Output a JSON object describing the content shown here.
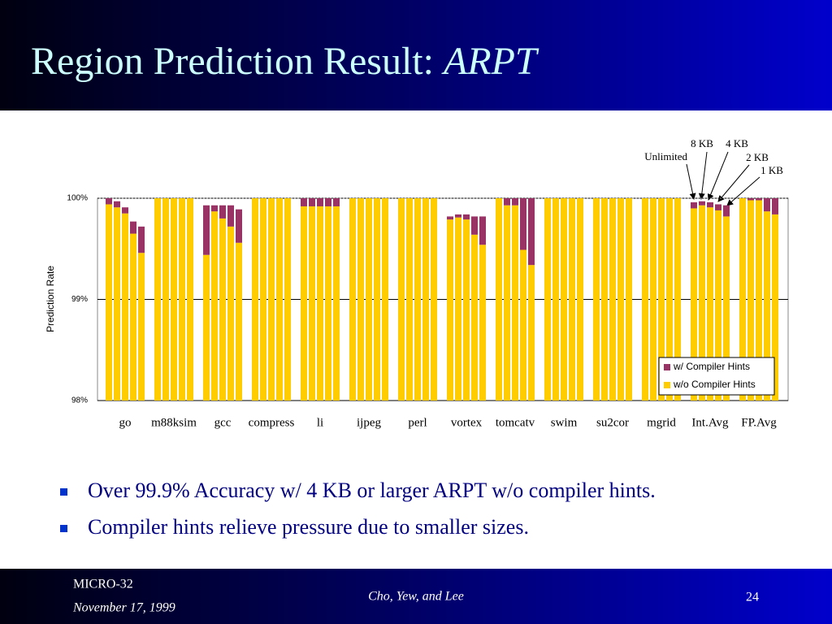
{
  "slide": {
    "title": "Region Prediction Result: ",
    "title_emphasis": "ARPT",
    "bullets": [
      "Over 99.9% Accuracy w/ 4 KB or larger ARPT w/o compiler hints.",
      "Compiler hints relieve pressure due to smaller sizes."
    ],
    "footer": {
      "venue": "MICRO-32",
      "date": "November 17, 1999",
      "authors": "Cho, Yew, and Lee",
      "page": "24"
    }
  },
  "chart_data": {
    "type": "bar",
    "stacked": true,
    "ylabel": "Prediction Rate",
    "categories": [
      "go",
      "m88ksim",
      "gcc",
      "compress",
      "li",
      "ijpeg",
      "perl",
      "vortex",
      "tomcatv",
      "swim",
      "su2cor",
      "mgrid",
      "Int.Avg",
      "FP.Avg"
    ],
    "bar_labels": [
      "Unlimited",
      "8 KB",
      "4 KB",
      "2 KB",
      "1 KB"
    ],
    "series": [
      {
        "name": "w/o Compiler Hints",
        "color": "#ffcc00",
        "values": [
          [
            99.94,
            99.91,
            99.85,
            99.65,
            99.46
          ],
          [
            100,
            100,
            100,
            100,
            100
          ],
          [
            99.44,
            99.87,
            99.8,
            99.72,
            99.56
          ],
          [
            100,
            100,
            100,
            100,
            100
          ],
          [
            99.92,
            99.92,
            99.92,
            99.92,
            99.92
          ],
          [
            100,
            100,
            100,
            100,
            100
          ],
          [
            100,
            100,
            100,
            100,
            100
          ],
          [
            99.79,
            99.81,
            99.79,
            99.64,
            99.54
          ],
          [
            100,
            99.93,
            99.93,
            99.49,
            99.34
          ],
          [
            100,
            100,
            100,
            100,
            100
          ],
          [
            100,
            100,
            100,
            100,
            100
          ],
          [
            100,
            100,
            100,
            100,
            100
          ],
          [
            99.9,
            99.93,
            99.91,
            99.88,
            99.82
          ],
          [
            100,
            99.98,
            99.98,
            99.87,
            99.84
          ]
        ]
      },
      {
        "name": "w/ Compiler Hints",
        "color": "#993366",
        "values": [
          [
            0.06,
            0.06,
            0.06,
            0.12,
            0.26
          ],
          [
            0,
            0,
            0,
            0,
            0
          ],
          [
            0.49,
            0.06,
            0.13,
            0.21,
            0.33
          ],
          [
            0,
            0,
            0,
            0,
            0
          ],
          [
            0.08,
            0.08,
            0.08,
            0.08,
            0.08
          ],
          [
            0,
            0,
            0,
            0,
            0
          ],
          [
            0,
            0,
            0,
            0,
            0
          ],
          [
            0.03,
            0.03,
            0.05,
            0.18,
            0.28
          ],
          [
            0,
            0.07,
            0.07,
            0.51,
            0.66
          ],
          [
            0,
            0,
            0,
            0,
            0
          ],
          [
            0,
            0,
            0,
            0,
            0
          ],
          [
            0,
            0,
            0,
            0,
            0
          ],
          [
            0.06,
            0.04,
            0.05,
            0.06,
            0.11
          ],
          [
            0,
            0.02,
            0.02,
            0.13,
            0.16
          ]
        ]
      }
    ],
    "ylim": [
      98,
      100
    ],
    "yticks": [
      {
        "value": 98,
        "label": "98%"
      },
      {
        "value": 99,
        "label": "99%"
      },
      {
        "value": 100,
        "label": "100%"
      }
    ],
    "grid": true,
    "legend": "lower right"
  }
}
